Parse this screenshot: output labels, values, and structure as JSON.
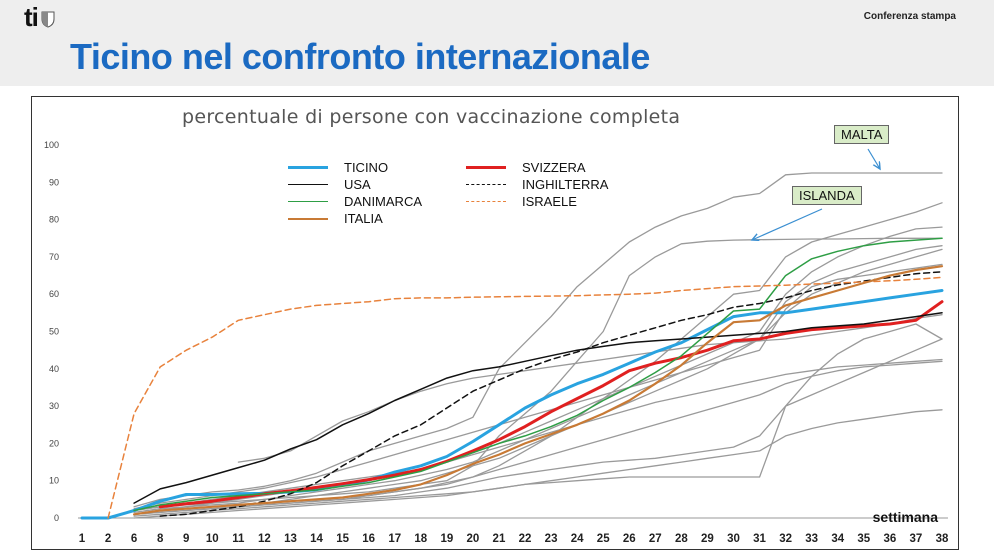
{
  "header": {
    "logo_text": "ti",
    "press_label": "Conferenza stampa",
    "page_title": "Ticino nel confronto internazionale"
  },
  "chart_data": {
    "type": "line",
    "title": "percentuale di persone con vaccinazione completa",
    "xlabel": "settimana",
    "ylabel": "",
    "ylim": [
      0,
      100
    ],
    "yticks": [
      0,
      10,
      20,
      30,
      40,
      50,
      60,
      70,
      80,
      90,
      100
    ],
    "x": [
      1,
      2,
      6,
      8,
      9,
      10,
      11,
      12,
      13,
      14,
      15,
      16,
      17,
      18,
      19,
      20,
      21,
      22,
      23,
      24,
      25,
      26,
      27,
      28,
      29,
      30,
      31,
      32,
      33,
      34,
      35,
      36,
      37,
      38
    ],
    "grid": false,
    "legend_position": "top-center",
    "series": [
      {
        "name": "TICINO",
        "color": "#29a3e0",
        "dash": "solid",
        "width": 3,
        "values": [
          0,
          0,
          2,
          4.5,
          6.3,
          6.3,
          6.5,
          6.6,
          7,
          7.6,
          8.8,
          10.2,
          12.3,
          14,
          16.5,
          20.5,
          25,
          29.5,
          33,
          36,
          38.5,
          41.5,
          44.5,
          47,
          50.5,
          54,
          55,
          55,
          56,
          57,
          58,
          59,
          60,
          61
        ]
      },
      {
        "name": "SVIZZERA",
        "color": "#e02020",
        "dash": "solid",
        "width": 3,
        "values": [
          null,
          null,
          null,
          3,
          3.8,
          4.5,
          5.5,
          6.5,
          7.3,
          8.2,
          9.2,
          10.3,
          11.5,
          13,
          15.2,
          18,
          21,
          24.5,
          28.5,
          32,
          35.5,
          39.5,
          41.5,
          43,
          45,
          47.5,
          48,
          49.5,
          50.5,
          51,
          51.5,
          52,
          53,
          58
        ]
      },
      {
        "name": "USA",
        "color": "#111111",
        "dash": "solid",
        "width": 1.5,
        "values": [
          null,
          null,
          4,
          7.8,
          9.5,
          11.5,
          13.5,
          15.5,
          18.5,
          21,
          25,
          28,
          31.5,
          34.5,
          37.5,
          39.5,
          40.5,
          42,
          43.5,
          45,
          46,
          47,
          47.5,
          48,
          48.5,
          49,
          49.5,
          50,
          51,
          51.5,
          52,
          53,
          54,
          55
        ]
      },
      {
        "name": "INGHILTERRA",
        "color": "#111111",
        "dash": "dashed",
        "width": 1.5,
        "values": [
          null,
          null,
          null,
          0.5,
          1,
          2,
          3,
          4.5,
          6.5,
          9.5,
          14,
          18,
          22,
          25,
          29.5,
          34,
          37,
          40,
          42.5,
          44.5,
          47,
          49,
          51,
          53,
          54.5,
          56.5,
          57.5,
          59,
          61,
          62.5,
          63.5,
          64.5,
          65.5,
          66
        ]
      },
      {
        "name": "DANIMARCA",
        "color": "#2e9e45",
        "dash": "solid",
        "width": 1.5,
        "values": [
          null,
          null,
          2,
          3.5,
          4.5,
          5.5,
          6,
          6.5,
          7,
          7.5,
          8.5,
          9.5,
          11,
          12.5,
          15,
          17.5,
          20,
          22,
          24.5,
          27.5,
          31.5,
          35,
          39,
          43.5,
          49.5,
          55.5,
          56,
          65,
          69.5,
          71.5,
          73,
          74,
          74.5,
          75
        ]
      },
      {
        "name": "ISRAELE",
        "color": "#e8823c",
        "dash": "dashed",
        "width": 1.5,
        "values": [
          null,
          0,
          28,
          40.5,
          45,
          48.5,
          53,
          54.5,
          56,
          57,
          57.5,
          58,
          58.8,
          59,
          59,
          59.2,
          59.3,
          59.4,
          59.5,
          59.6,
          59.8,
          60,
          60.3,
          61,
          61.5,
          62,
          62.2,
          62.4,
          62.7,
          63,
          63.3,
          63.6,
          64,
          64.5
        ]
      },
      {
        "name": "ITALIA",
        "color": "#c87a35",
        "dash": "solid",
        "width": 2.2,
        "values": [
          null,
          null,
          1,
          2,
          2.5,
          3,
          3.5,
          4,
          4.5,
          5,
          5.5,
          6.5,
          7.5,
          9,
          11.5,
          14.5,
          17,
          20,
          22.5,
          25,
          28,
          31.5,
          36,
          41,
          47,
          52.5,
          53,
          57,
          59,
          61,
          63,
          65,
          66.5,
          67.5
        ]
      },
      {
        "name": "",
        "color": "#9a9a9a",
        "dash": "solid",
        "width": 1.3,
        "values": [
          null,
          null,
          3,
          5,
          6,
          7,
          7.5,
          8.5,
          10,
          12,
          15,
          18,
          20,
          22,
          24,
          27,
          40,
          47,
          54,
          62,
          68,
          74,
          78,
          81,
          83,
          86,
          87,
          92,
          92.5,
          92.5,
          92.5,
          92.5,
          92.5,
          92.5
        ]
      },
      {
        "name": "",
        "color": "#9a9a9a",
        "dash": "solid",
        "width": 1.3,
        "values": [
          null,
          null,
          2,
          3,
          3.5,
          4,
          4.5,
          5,
          5.5,
          6,
          6.5,
          7,
          8,
          9,
          10,
          14,
          22,
          28,
          34,
          42,
          50,
          65,
          70,
          73.5,
          74.2,
          74.5,
          74.6,
          74.7,
          74.8,
          74.8,
          74.9,
          75,
          75,
          75
        ]
      },
      {
        "name": "",
        "color": "#9a9a9a",
        "dash": "solid",
        "width": 1.3,
        "values": [
          null,
          null,
          1,
          2,
          2.5,
          3,
          3.5,
          4,
          4.5,
          5,
          5.5,
          6,
          7,
          8,
          9,
          11,
          14,
          18,
          22,
          27,
          32,
          37,
          42,
          48,
          54,
          60,
          61,
          70,
          74,
          76,
          78,
          80,
          82,
          84.5
        ]
      },
      {
        "name": "",
        "color": "#9a9a9a",
        "dash": "solid",
        "width": 1.3,
        "values": [
          null,
          null,
          1,
          1.5,
          2,
          2.5,
          3,
          3.5,
          4,
          4.5,
          5,
          5.5,
          6,
          7,
          8,
          9.5,
          11,
          12,
          13,
          14,
          15,
          15.5,
          16,
          17,
          18,
          19,
          22,
          30,
          38,
          44,
          48,
          50,
          52,
          48
        ]
      },
      {
        "name": "",
        "color": "#9a9a9a",
        "dash": "solid",
        "width": 1.3,
        "values": [
          null,
          null,
          0.5,
          1,
          1.5,
          2,
          2.5,
          3,
          3.5,
          4,
          4.5,
          5,
          5.5,
          6,
          6.5,
          7,
          8,
          9,
          10,
          11,
          12,
          13,
          14,
          15,
          16,
          17,
          18,
          22,
          24,
          25.5,
          26.5,
          27.5,
          28.5,
          29
        ]
      },
      {
        "name": "",
        "color": "#9a9a9a",
        "dash": "solid",
        "width": 1.3,
        "values": [
          null,
          null,
          0,
          0.5,
          1,
          1.5,
          2,
          2.5,
          3,
          3.5,
          4,
          4.5,
          5,
          5.5,
          6,
          7,
          8,
          9,
          9.5,
          10,
          10.5,
          11,
          11,
          11,
          11,
          11,
          11,
          30,
          33,
          36,
          39,
          42,
          45,
          48
        ]
      },
      {
        "name": "",
        "color": "#9a9a9a",
        "dash": "solid",
        "width": 1.3,
        "values": [
          null,
          null,
          2,
          3,
          4,
          5,
          6,
          7,
          8,
          9,
          10,
          11,
          12,
          13,
          15,
          17,
          19,
          21,
          23,
          25,
          27,
          29,
          31,
          32.5,
          34,
          35.5,
          37,
          38.5,
          39.5,
          40.5,
          41,
          41.5,
          42,
          42.5
        ]
      },
      {
        "name": "",
        "color": "#9a9a9a",
        "dash": "solid",
        "width": 1.3,
        "values": [
          null,
          null,
          1.5,
          2.5,
          3,
          3.5,
          4,
          5,
          6,
          7,
          8,
          9,
          10,
          11.5,
          13,
          15,
          18,
          21,
          24,
          27,
          30,
          33,
          36,
          39,
          42,
          45,
          48,
          55,
          60,
          63,
          66,
          68,
          70,
          72
        ]
      },
      {
        "name": "",
        "color": "#9a9a9a",
        "dash": "solid",
        "width": 1.3,
        "values": [
          null,
          null,
          1,
          2,
          2.5,
          3,
          3.5,
          4,
          5,
          6,
          7,
          8,
          9,
          10,
          12,
          14,
          16,
          19,
          22,
          25,
          28,
          31,
          34,
          37,
          40,
          44,
          48,
          58,
          63,
          66,
          68,
          70,
          72,
          73
        ]
      },
      {
        "name": "",
        "color": "#9a9a9a",
        "dash": "solid",
        "width": 1.3,
        "values": [
          null,
          null,
          1,
          1.5,
          2,
          2.5,
          3,
          3.5,
          4,
          4.5,
          5,
          6,
          7,
          8,
          9.5,
          11,
          13,
          15,
          17,
          19,
          21,
          23,
          25,
          27,
          29,
          31,
          33,
          36,
          38,
          39.5,
          40.5,
          41,
          41.5,
          42
        ]
      },
      {
        "name": "",
        "color": "#9a9a9a",
        "dash": "solid",
        "width": 1.3,
        "values": [
          null,
          null,
          2.5,
          4,
          5,
          6,
          7,
          8,
          9.5,
          11,
          13,
          15,
          17,
          19,
          21,
          23,
          25,
          27,
          29,
          31,
          33,
          35,
          37,
          39,
          41,
          43,
          45,
          56,
          62,
          64,
          65,
          66,
          67,
          68
        ]
      },
      {
        "name": "",
        "color": "#9a9a9a",
        "dash": "solid",
        "width": 1.3,
        "values": [
          null,
          null,
          1,
          2,
          3,
          4,
          5,
          6,
          7,
          8,
          9,
          10,
          11.5,
          13,
          15,
          17.5,
          20,
          23,
          26,
          29,
          32,
          35,
          38,
          41,
          44,
          47,
          50,
          60,
          66,
          70,
          73,
          75.5,
          77.5,
          78
        ]
      },
      {
        "name": "",
        "color": "#9a9a9a",
        "dash": "solid",
        "width": 1.3,
        "values": [
          null,
          null,
          null,
          null,
          null,
          null,
          15,
          16,
          18,
          22,
          26,
          28.5,
          31.5,
          34,
          36,
          37.5,
          38.5,
          39.5,
          40.5,
          41.5,
          42.5,
          43.5,
          44.5,
          45.5,
          46.5,
          47,
          47.5,
          48,
          49,
          50,
          51,
          52,
          53.5,
          54.5
        ]
      }
    ]
  },
  "callouts": {
    "malta": "MALTA",
    "islanda": "ISLANDA"
  }
}
